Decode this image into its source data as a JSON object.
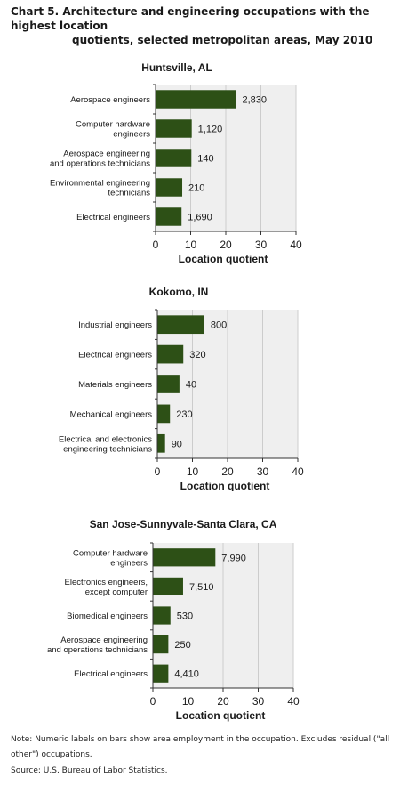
{
  "header": {
    "title_line1": "Chart 5. Architecture and engineering occupations with the highest location",
    "title_line2": "quotients, selected metropolitan areas, May 2010"
  },
  "footer": {
    "note": "Note: Numeric labels on bars show area employment in the occupation. Excludes residual (\"all other\") occupations.",
    "source": "Source: U.S. Bureau of Labor Statistics."
  },
  "chart_data": [
    {
      "type": "bar",
      "orientation": "horizontal",
      "title": "Huntsville, AL",
      "xlabel": "Location quotient",
      "xlim": [
        0,
        40
      ],
      "ticks": [
        0,
        10,
        20,
        30,
        40
      ],
      "bar_color": "#2d5016",
      "categories": [
        [
          "Aerospace engineers"
        ],
        [
          "Computer hardware",
          "engineers"
        ],
        [
          "Aerospace engineering",
          "and operations technicians"
        ],
        [
          "Environmental engineering",
          "technicians"
        ],
        [
          "Electrical engineers"
        ]
      ],
      "values": [
        22.9,
        10.3,
        10.2,
        7.6,
        7.4
      ],
      "data_labels": [
        "2,830",
        "1,120",
        "140",
        "210",
        "1,690"
      ]
    },
    {
      "type": "bar",
      "orientation": "horizontal",
      "title": "Kokomo, IN",
      "xlabel": "Location quotient",
      "xlim": [
        0,
        40
      ],
      "ticks": [
        0,
        10,
        20,
        30,
        40
      ],
      "bar_color": "#2d5016",
      "categories": [
        [
          "Industrial engineers"
        ],
        [
          "Electrical engineers"
        ],
        [
          "Materials engineers"
        ],
        [
          "Mechanical engineers"
        ],
        [
          "Electrical and electronics",
          "engineering technicians"
        ]
      ],
      "values": [
        13.4,
        7.4,
        6.3,
        3.6,
        2.2
      ],
      "data_labels": [
        "800",
        "320",
        "40",
        "230",
        "90"
      ]
    },
    {
      "type": "bar",
      "orientation": "horizontal",
      "title": "San Jose-Sunnyvale-Santa Clara, CA",
      "xlabel": "Location quotient",
      "xlim": [
        0,
        40
      ],
      "ticks": [
        0,
        10,
        20,
        30,
        40
      ],
      "bar_color": "#2d5016",
      "categories": [
        [
          "Computer hardware",
          "engineers"
        ],
        [
          "Electronics engineers,",
          "except computer"
        ],
        [
          "Biomedical engineers"
        ],
        [
          "Aerospace engineering",
          "and operations technicians"
        ],
        [
          "Electrical engineers"
        ]
      ],
      "values": [
        17.8,
        8.6,
        5.0,
        4.4,
        4.4
      ],
      "data_labels": [
        "7,990",
        "7,510",
        "530",
        "250",
        "4,410"
      ]
    }
  ]
}
